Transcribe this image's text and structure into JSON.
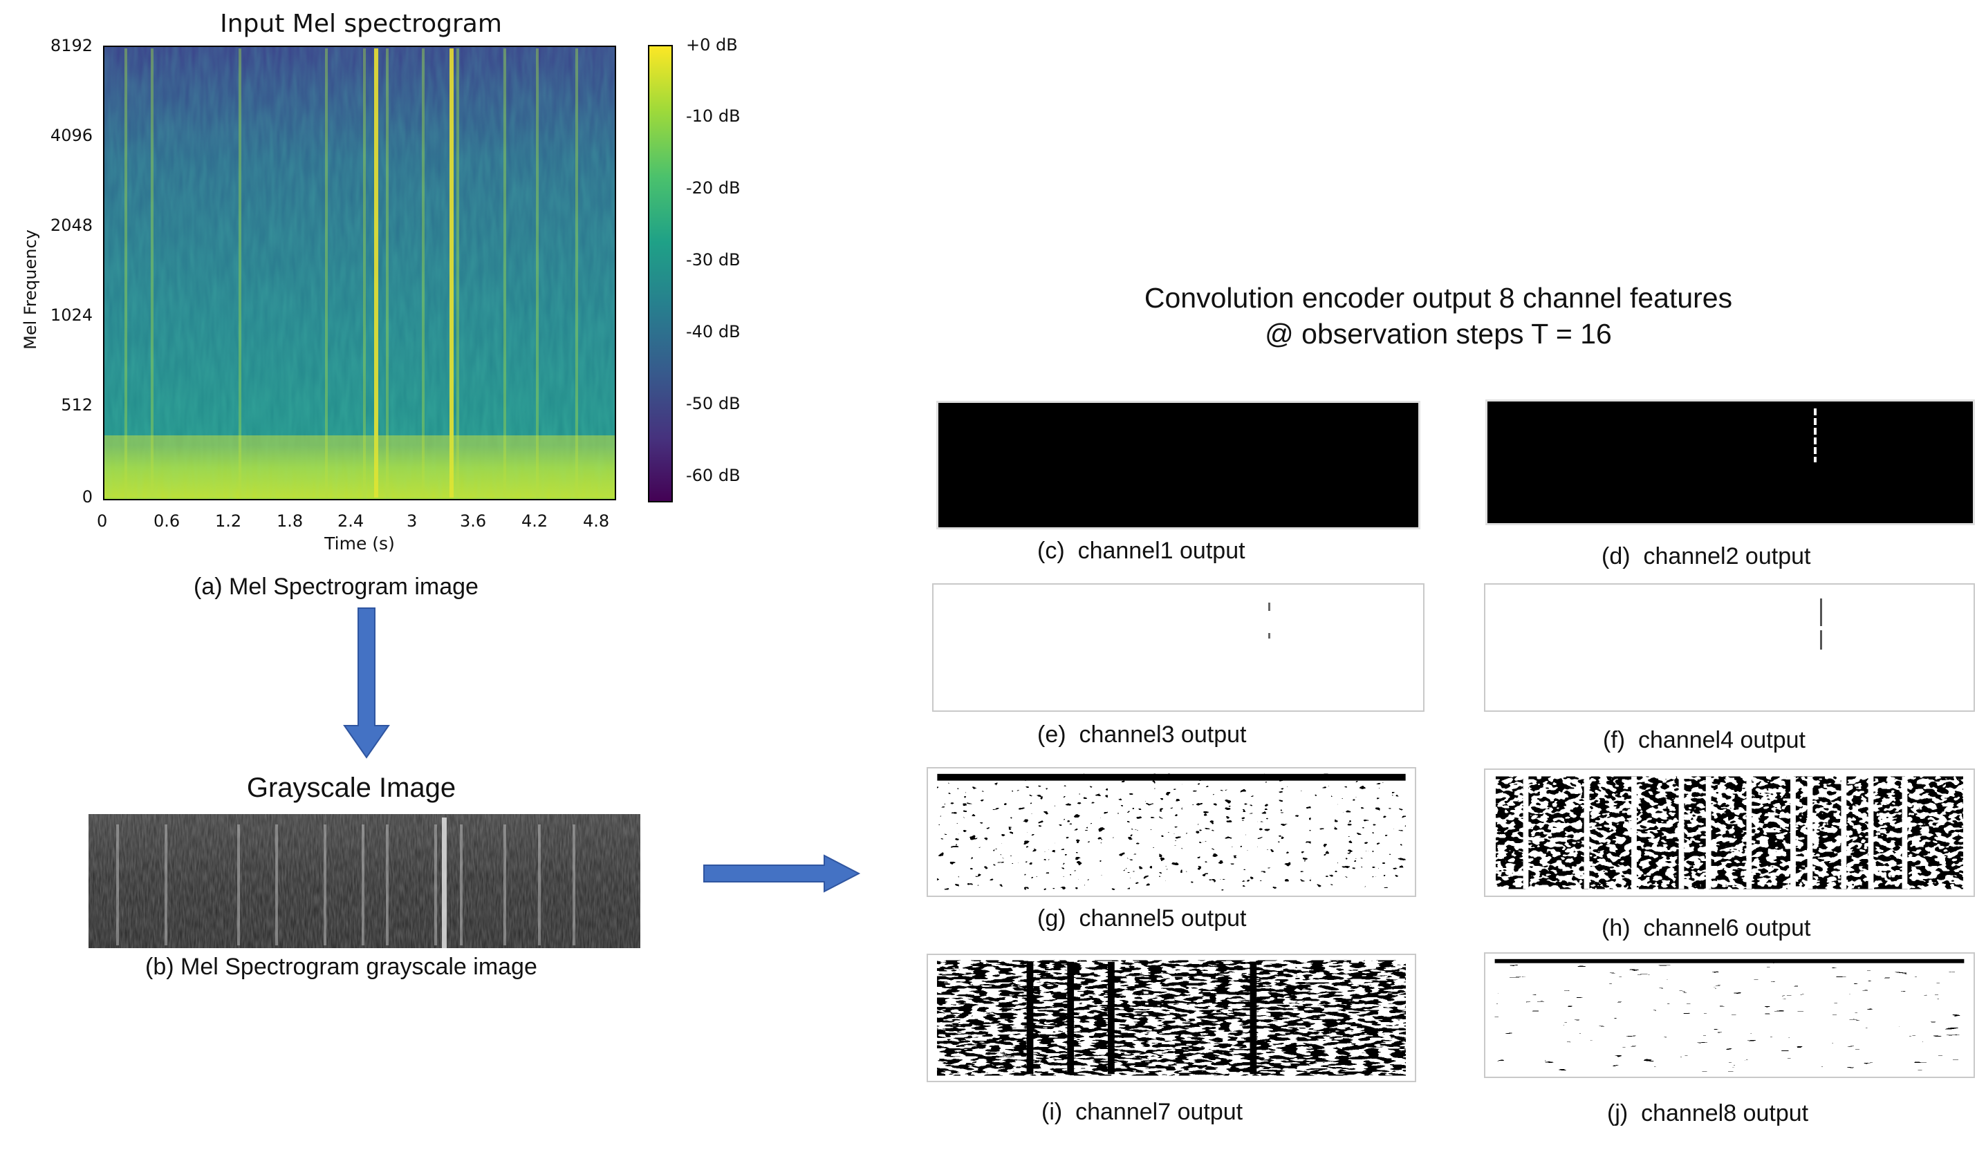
{
  "spectrogram": {
    "title": "Input Mel spectrogram",
    "ylabel": "Mel Frequency",
    "xlabel": "Time (s)",
    "yticks": [
      "8192",
      "4096",
      "2048",
      "1024",
      "512",
      "0"
    ],
    "xticks": [
      "0",
      "0.6",
      "1.2",
      "1.8",
      "2.4",
      "3",
      "3.6",
      "4.2",
      "4.8"
    ],
    "colorbar_ticks": [
      "+0 dB",
      "-10 dB",
      "-20 dB",
      "-30 dB",
      "-40 dB",
      "-50 dB",
      "-60 dB"
    ],
    "caption": "(a) Mel Spectrogram image",
    "colors": {
      "low": "#440154",
      "mid": "#21918c",
      "high": "#fde725"
    }
  },
  "grayscale": {
    "title": "Grayscale Image",
    "caption": "(b) Mel Spectrogram grayscale image"
  },
  "encoder": {
    "title_line1": "Convolution encoder output 8 channel features",
    "title_line2": "@ observation steps T = 16"
  },
  "channels": [
    {
      "label": "(c)",
      "text": "channel1 output"
    },
    {
      "label": "(d)",
      "text": "channel2 output"
    },
    {
      "label": "(e)",
      "text": "channel3 output"
    },
    {
      "label": "(f)",
      "text": "channel4 output"
    },
    {
      "label": "(g)",
      "text": "channel5 output"
    },
    {
      "label": "(h)",
      "text": "channel6 output"
    },
    {
      "label": "(i)",
      "text": "channel7 output"
    },
    {
      "label": "(j)",
      "text": "channel8 output"
    }
  ],
  "arrow_color": "#4472c4"
}
